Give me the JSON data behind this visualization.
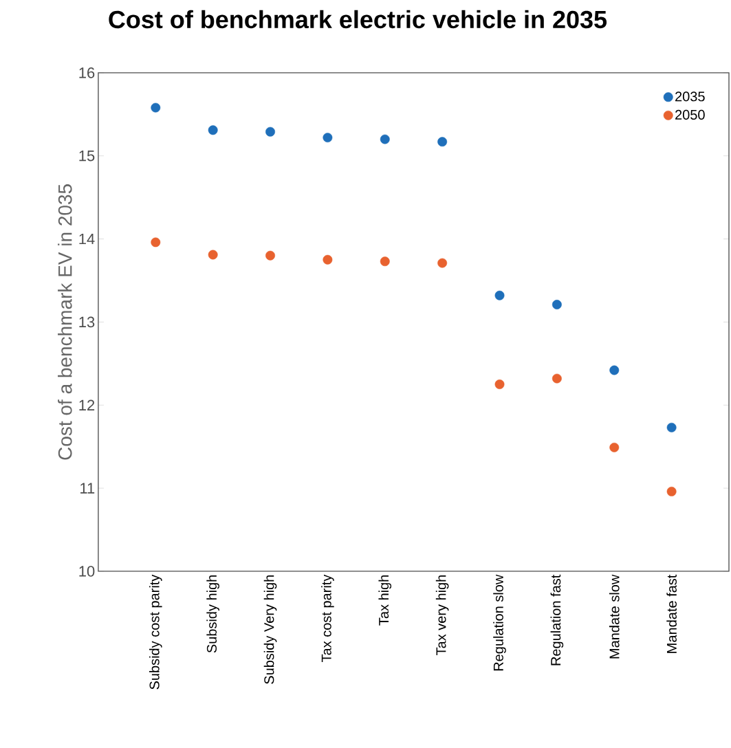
{
  "chart_data": {
    "type": "scatter",
    "title": "Cost of benchmark electric vehicle in 2035",
    "ylabel": "Cost of a benchmark EV in 2035",
    "categories": [
      "Subsidy cost parity",
      "Subsidy high",
      "Subsidy Very high",
      "Tax cost parity",
      "Tax high",
      "Tax very high",
      "Regulation slow",
      "Regulation fast",
      "Mandate slow",
      "Mandate fast"
    ],
    "series": [
      {
        "name": "2035",
        "color": "#1f6fba",
        "values": [
          15.58,
          15.31,
          15.29,
          15.22,
          15.2,
          15.17,
          13.32,
          13.21,
          12.42,
          11.73
        ]
      },
      {
        "name": "2050",
        "color": "#e8622f",
        "values": [
          13.96,
          13.81,
          13.8,
          13.75,
          13.73,
          13.71,
          12.25,
          12.32,
          11.49,
          10.96
        ]
      }
    ],
    "ylim": [
      10,
      16
    ],
    "yticks": [
      10,
      11,
      12,
      13,
      14,
      15,
      16
    ],
    "legend": "top right",
    "marker": "circle",
    "grid": false
  }
}
